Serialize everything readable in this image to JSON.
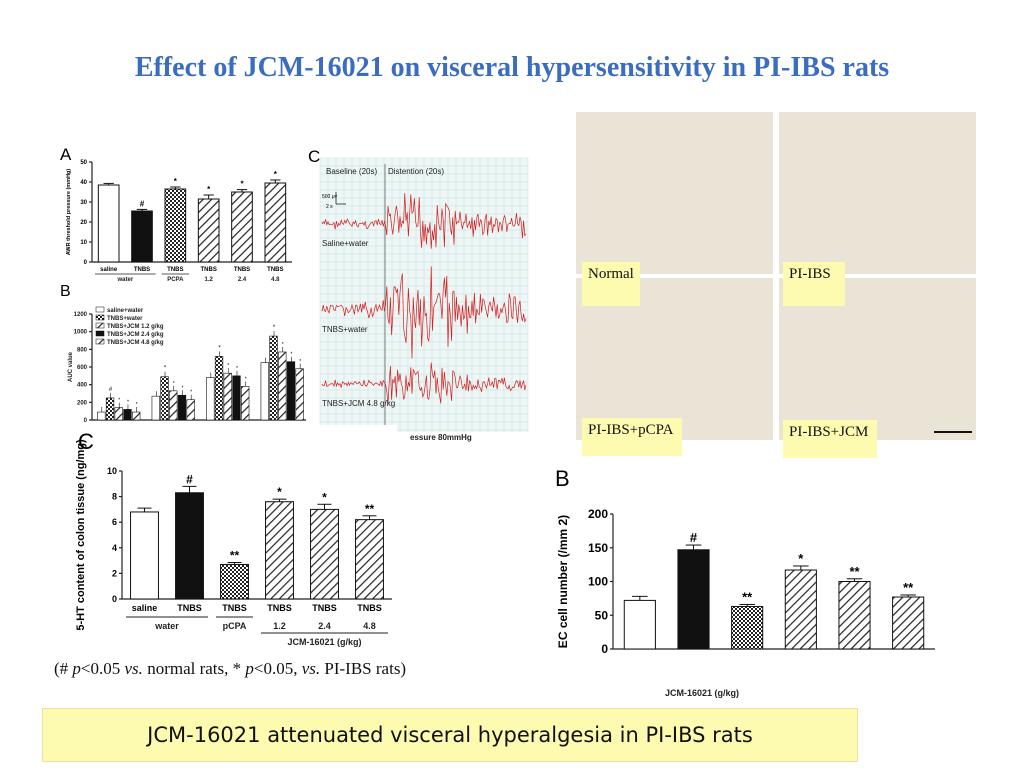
{
  "slide": {
    "title": "Effect of JCM-16021 on visceral hypersensitivity in PI-IBS rats",
    "caption": "JCM-16021 attenuated visceral hyperalgesia in PI-IBS rats",
    "note": {
      "prefix": "(# ",
      "p1": "p",
      "mid1": "<0.05 ",
      "vs1": "vs.",
      "mid2": " normal rats, * ",
      "p2": "p",
      "mid3": "<0.05, ",
      "vs2": "vs.",
      "suffix": " PI-IBS rats)"
    }
  },
  "chart_data": [
    {
      "id": "A",
      "type": "bar",
      "panel_label": "A",
      "ylabel": "AWR threshold pressure (mmHg)",
      "ylim": [
        0,
        50
      ],
      "yticks": [
        0,
        10,
        20,
        30,
        40,
        50
      ],
      "categories": [
        "saline",
        "TNBS",
        "TNBS",
        "TNBS",
        "TNBS",
        "TNBS"
      ],
      "group_labels": [
        "water",
        "PCPA",
        "1.2",
        "2.4",
        "4.8",
        "JCM-16021(g/kg)"
      ],
      "values": [
        38.5,
        25.5,
        36.5,
        31.5,
        35,
        39.5
      ],
      "errors": [
        0.8,
        0.8,
        1.0,
        2.0,
        1.2,
        1.5
      ],
      "marks": [
        "",
        "#",
        "*",
        "*",
        "*",
        "*"
      ],
      "fills": [
        "white",
        "black",
        "crosshatch",
        "diag",
        "diag",
        "diag"
      ]
    },
    {
      "id": "B_top",
      "type": "bar",
      "panel_label": "B",
      "ylabel": "AUC value",
      "ylim": [
        0,
        1200
      ],
      "yticks": [
        0,
        200,
        400,
        600,
        800,
        1000,
        1200
      ],
      "legend": [
        "saline+water",
        "TNBS+water",
        "TNBS+JCM 1.2 g/kg",
        "TNBS+JCM 2.4 g/kg",
        "TNBS+JCM 4.8 g/kg"
      ],
      "series": [
        {
          "name": "saline+water",
          "values": [
            90,
            270,
            480,
            650
          ]
        },
        {
          "name": "TNBS+water",
          "values": [
            250,
            490,
            720,
            950
          ]
        },
        {
          "name": "TNBS+JCM 1.2 g/kg",
          "values": [
            140,
            330,
            530,
            770
          ]
        },
        {
          "name": "TNBS+JCM 2.4 g/kg",
          "values": [
            120,
            280,
            500,
            660
          ]
        },
        {
          "name": "TNBS+JCM 4.8 g/kg",
          "values": [
            90,
            230,
            380,
            580
          ]
        }
      ],
      "marks": [
        "#",
        "*",
        "*",
        "*"
      ]
    },
    {
      "id": "C_emg",
      "type": "line",
      "panel_label": "C",
      "header_labels": [
        "Baseline (20s)",
        "Distention (20s)"
      ],
      "scale_labels": [
        "500 μv",
        "2 s"
      ],
      "traces": [
        "Saline+water",
        "TNBS+water",
        "TNBS+JCM 4.8 g/kg"
      ],
      "footer": "essure 80mmHg"
    },
    {
      "id": "C_5HT",
      "type": "bar",
      "panel_label": "C",
      "ylabel": "5-HT content of colon tissue (ng/mg)",
      "ylim": [
        0,
        10
      ],
      "yticks": [
        0,
        2,
        4,
        6,
        8,
        10
      ],
      "categories": [
        "saline",
        "TNBS",
        "TNBS",
        "TNBS",
        "TNBS",
        "TNBS"
      ],
      "group_labels": [
        "water",
        "pCPA",
        "1.2",
        "2.4",
        "4.8",
        "JCM-16021 (g/kg)"
      ],
      "values": [
        6.8,
        8.3,
        2.7,
        7.6,
        7.0,
        6.2
      ],
      "errors": [
        0.3,
        0.5,
        0.15,
        0.2,
        0.4,
        0.3
      ],
      "marks": [
        "",
        "#",
        "**",
        "*",
        "*",
        "**"
      ],
      "fills": [
        "white",
        "black",
        "crosshatch",
        "diag",
        "diag",
        "diag"
      ]
    },
    {
      "id": "B_EC",
      "type": "bar",
      "panel_label": "B",
      "ylabel": "EC cell number (/mm 2)",
      "ylim": [
        0,
        200
      ],
      "yticks": [
        0,
        50,
        100,
        150,
        200
      ],
      "xlabel": "JCM-16021 (g/kg)",
      "values": [
        72,
        147,
        63,
        117,
        100,
        77
      ],
      "errors": [
        6,
        7,
        3,
        6,
        4,
        3
      ],
      "marks": [
        "",
        "#",
        "**",
        "*",
        "**",
        "**"
      ],
      "fills": [
        "white",
        "black",
        "crosshatch",
        "diag",
        "diag",
        "diag"
      ]
    }
  ],
  "histology": [
    {
      "label": "Normal"
    },
    {
      "label": "PI-IBS"
    },
    {
      "label": "PI-IBS+pCPA"
    },
    {
      "label": "PI-IBS+JCM"
    }
  ]
}
